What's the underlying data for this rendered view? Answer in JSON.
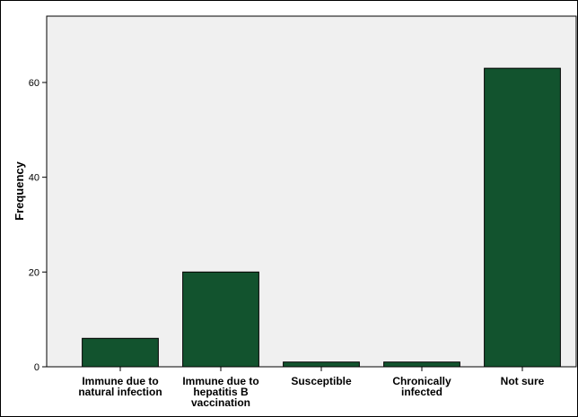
{
  "chart_data": {
    "type": "bar",
    "title": "",
    "xlabel": "",
    "ylabel": "Frequency",
    "categories": [
      [
        "Immune due to",
        "natural infection"
      ],
      [
        "Immune due to",
        "hepatitis B",
        "vaccination"
      ],
      [
        "Susceptible"
      ],
      [
        "Chronically",
        "infected"
      ],
      [
        "Not sure"
      ]
    ],
    "values": [
      6,
      20,
      1,
      1,
      63
    ],
    "ylim": [
      0,
      74
    ],
    "yticks": [
      0,
      20,
      40,
      60
    ],
    "grid": false,
    "colors": {
      "bar": "#12532e",
      "plot_background": "#f0f0f0"
    }
  }
}
